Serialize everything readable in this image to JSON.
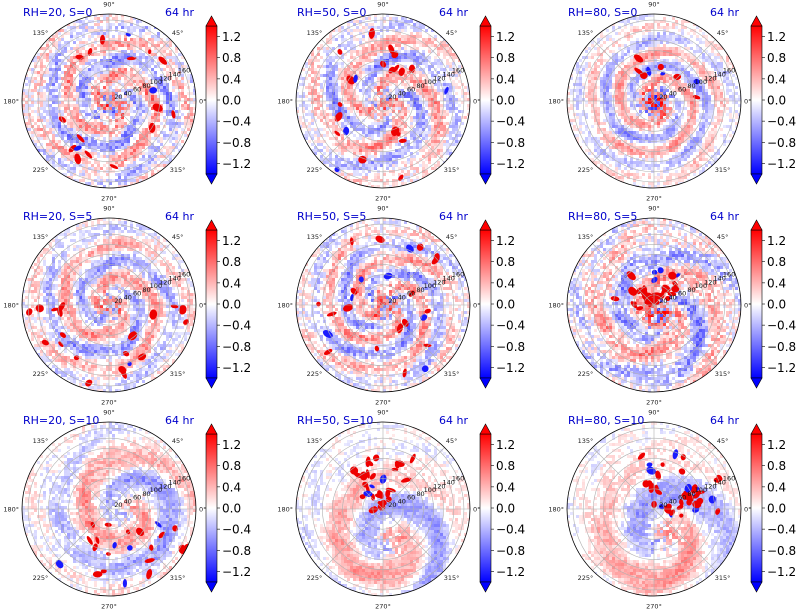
{
  "figure": {
    "panels_per_row": 3,
    "colors": {
      "negative": "#0000ff",
      "zero": "#ffffff",
      "positive": "#ff0000",
      "title": "#0000cc",
      "grid": "#b0b0b0"
    }
  },
  "chart_data": [
    {
      "type": "heatmap",
      "projection": "polar",
      "title": "RH=20, S=0",
      "time_label": "64 hr",
      "theta_ticks": [
        "0°",
        "45°",
        "90°",
        "135°",
        "180°",
        "225°",
        "270°",
        "315°"
      ],
      "radial_ticks": [
        "20",
        "40",
        "60",
        "80",
        "100",
        "120",
        "140",
        "160"
      ],
      "colorbar": {
        "ticks": [
          "1.2",
          "0.8",
          "0.4",
          "0.0",
          "−0.4",
          "−0.8",
          "−1.2"
        ],
        "range": [
          -1.4,
          1.4
        ],
        "extend": "both"
      },
      "seed": 11,
      "core": 0.9,
      "arms": 2,
      "twist": 5.0,
      "offset_x": 0,
      "offset_y": 0,
      "cluster_n": 18,
      "cluster_angle": [
        0,
        360
      ],
      "cluster_r": [
        0.5,
        0.85
      ],
      "noise": 0.8
    },
    {
      "type": "heatmap",
      "projection": "polar",
      "title": "RH=50, S=0",
      "time_label": "64 hr",
      "theta_ticks": [
        "0°",
        "45°",
        "90°",
        "135°",
        "180°",
        "225°",
        "270°",
        "315°"
      ],
      "radial_ticks": [
        "20",
        "40",
        "60",
        "80",
        "100",
        "120",
        "140",
        "160"
      ],
      "colorbar": {
        "ticks": [
          "1.2",
          "0.8",
          "0.4",
          "0.0",
          "−0.4",
          "−0.8",
          "−1.2"
        ],
        "range": [
          -1.4,
          1.4
        ],
        "extend": "both"
      },
      "seed": 23,
      "core": 0.7,
      "arms": 3,
      "twist": 4.2,
      "offset_x": 0,
      "offset_y": 0,
      "cluster_n": 22,
      "cluster_angle": [
        0,
        360
      ],
      "cluster_r": [
        0.35,
        0.95
      ],
      "noise": 0.7
    },
    {
      "type": "heatmap",
      "projection": "polar",
      "title": "RH=80, S=0",
      "time_label": "64 hr",
      "theta_ticks": [
        "0°",
        "45°",
        "90°",
        "135°",
        "180°",
        "225°",
        "270°",
        "315°"
      ],
      "radial_ticks": [
        "20",
        "40",
        "60",
        "80",
        "100",
        "120",
        "140",
        "160"
      ],
      "colorbar": {
        "ticks": [
          "1.2",
          "0.8",
          "0.4",
          "0.0",
          "−0.4",
          "−0.8",
          "−1.2"
        ],
        "range": [
          -1.4,
          1.4
        ],
        "extend": "both"
      },
      "seed": 37,
      "core": 1.4,
      "arms": 2,
      "twist": 6.0,
      "offset_x": 0,
      "offset_y": 0,
      "cluster_n": 10,
      "cluster_angle": [
        0,
        120
      ],
      "cluster_r": [
        0.3,
        0.55
      ],
      "noise": 0.5
    },
    {
      "type": "heatmap",
      "projection": "polar",
      "title": "RH=20, S=5",
      "time_label": "64 hr",
      "theta_ticks": [
        "0°",
        "45°",
        "90°",
        "135°",
        "180°",
        "225°",
        "270°",
        "315°"
      ],
      "radial_ticks": [
        "20",
        "40",
        "60",
        "80",
        "100",
        "120",
        "140",
        "160"
      ],
      "colorbar": {
        "ticks": [
          "1.2",
          "0.8",
          "0.4",
          "0.0",
          "−0.4",
          "−0.8",
          "−1.2"
        ],
        "range": [
          -1.4,
          1.4
        ],
        "extend": "both"
      },
      "seed": 41,
      "core": 0.8,
      "arms": 2,
      "twist": 4.8,
      "offset_x": 0,
      "offset_y": 0,
      "cluster_n": 20,
      "cluster_angle": [
        180,
        360
      ],
      "cluster_r": [
        0.4,
        0.95
      ],
      "noise": 0.6
    },
    {
      "type": "heatmap",
      "projection": "polar",
      "title": "RH=50, S=5",
      "time_label": "64 hr",
      "theta_ticks": [
        "0°",
        "45°",
        "90°",
        "135°",
        "180°",
        "225°",
        "270°",
        "315°"
      ],
      "radial_ticks": [
        "20",
        "40",
        "60",
        "80",
        "100",
        "120",
        "140",
        "160"
      ],
      "colorbar": {
        "ticks": [
          "1.2",
          "0.8",
          "0.4",
          "0.0",
          "−0.4",
          "−0.8",
          "−1.2"
        ],
        "range": [
          -1.4,
          1.4
        ],
        "extend": "both"
      },
      "seed": 53,
      "core": 0.9,
      "arms": 3,
      "twist": 5.5,
      "offset_x": 0,
      "offset_y": 0,
      "cluster_n": 24,
      "cluster_angle": [
        0,
        360
      ],
      "cluster_r": [
        0.3,
        0.9
      ],
      "noise": 0.7
    },
    {
      "type": "heatmap",
      "projection": "polar",
      "title": "RH=80, S=5",
      "time_label": "64 hr",
      "theta_ticks": [
        "0°",
        "45°",
        "90°",
        "135°",
        "180°",
        "225°",
        "270°",
        "315°"
      ],
      "radial_ticks": [
        "20",
        "40",
        "60",
        "80",
        "100",
        "120",
        "140",
        "160"
      ],
      "colorbar": {
        "ticks": [
          "1.2",
          "0.8",
          "0.4",
          "0.0",
          "−0.4",
          "−0.8",
          "−1.2"
        ],
        "range": [
          -1.4,
          1.4
        ],
        "extend": "both"
      },
      "seed": 67,
      "core": 1.3,
      "arms": 2,
      "twist": 3.5,
      "offset_x": 0.05,
      "offset_y": -0.1,
      "cluster_n": 30,
      "cluster_angle": [
        30,
        180
      ],
      "cluster_r": [
        0.05,
        0.5
      ],
      "noise": 0.8
    },
    {
      "type": "heatmap",
      "projection": "polar",
      "title": "RH=20, S=10",
      "time_label": "64 hr",
      "theta_ticks": [
        "0°",
        "45°",
        "90°",
        "135°",
        "180°",
        "225°",
        "270°",
        "315°"
      ],
      "radial_ticks": [
        "20",
        "40",
        "60",
        "80",
        "100",
        "120",
        "140",
        "160"
      ],
      "colorbar": {
        "ticks": [
          "1.2",
          "0.8",
          "0.4",
          "0.0",
          "−0.4",
          "−0.8",
          "−1.2"
        ],
        "range": [
          -1.4,
          1.4
        ],
        "extend": "both"
      },
      "seed": 71,
      "core": 0.3,
      "arms": 1,
      "twist": 3.0,
      "offset_x": 0.2,
      "offset_y": 0.0,
      "cluster_n": 22,
      "cluster_angle": [
        200,
        360
      ],
      "cluster_r": [
        0.2,
        0.95
      ],
      "noise": 0.5
    },
    {
      "type": "heatmap",
      "projection": "polar",
      "title": "RH=50, S=10",
      "time_label": "64 hr",
      "theta_ticks": [
        "0°",
        "45°",
        "90°",
        "135°",
        "180°",
        "225°",
        "270°",
        "315°"
      ],
      "radial_ticks": [
        "20",
        "40",
        "60",
        "80",
        "100",
        "120",
        "140",
        "160"
      ],
      "colorbar": {
        "ticks": [
          "1.2",
          "0.8",
          "0.4",
          "0.0",
          "−0.4",
          "−0.8",
          "−1.2"
        ],
        "range": [
          -1.4,
          1.4
        ],
        "extend": "both"
      },
      "seed": 83,
      "core": 0.4,
      "arms": 1,
      "twist": 2.5,
      "offset_x": 0.05,
      "offset_y": -0.35,
      "cluster_n": 30,
      "cluster_angle": [
        60,
        130
      ],
      "cluster_r": [
        0.2,
        0.85
      ],
      "noise": 0.4
    },
    {
      "type": "heatmap",
      "projection": "polar",
      "title": "RH=80, S=10",
      "time_label": "64 hr",
      "theta_ticks": [
        "0°",
        "45°",
        "90°",
        "135°",
        "180°",
        "225°",
        "270°",
        "315°"
      ],
      "radial_ticks": [
        "20",
        "40",
        "60",
        "80",
        "100",
        "120",
        "140",
        "160"
      ],
      "colorbar": {
        "ticks": [
          "1.2",
          "0.8",
          "0.4",
          "0.0",
          "−0.4",
          "−0.8",
          "−1.2"
        ],
        "range": [
          -1.4,
          1.4
        ],
        "extend": "both"
      },
      "seed": 97,
      "core": 0.5,
      "arms": 1,
      "twist": 2.0,
      "offset_x": 0.1,
      "offset_y": -0.3,
      "cluster_n": 40,
      "cluster_angle": [
        10,
        110
      ],
      "cluster_r": [
        0.15,
        0.9
      ],
      "noise": 0.4
    }
  ]
}
